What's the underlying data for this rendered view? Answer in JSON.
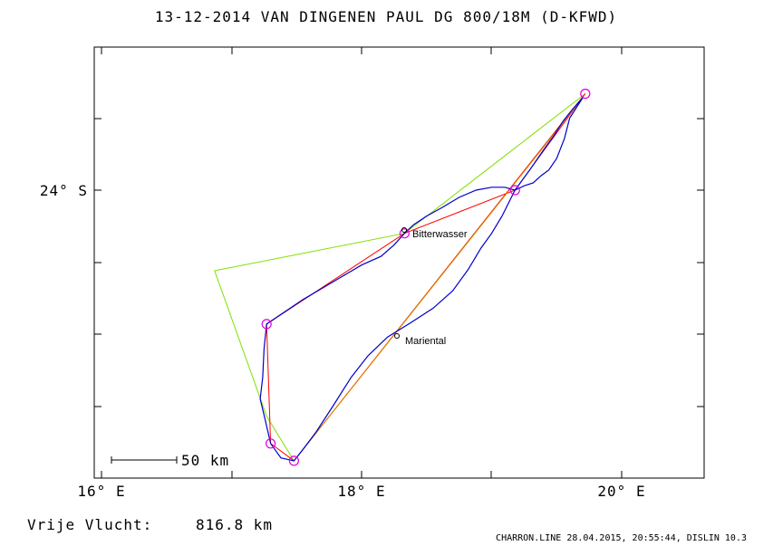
{
  "title": "13-12-2014    VAN DINGENEN PAUL    DG 800/18M (D-KFWD)",
  "colors": {
    "track": "#0000cc",
    "task_red": "#ff0000",
    "task_green": "#80e000",
    "task_orange": "#e08000",
    "turnpoint": "#e000e0",
    "frame": "#000000"
  },
  "axes": {
    "x_ticks": [
      "16° E",
      "18° E",
      "20° E"
    ],
    "y_ticks": [
      "24° S"
    ]
  },
  "places": [
    {
      "name": "Bitterwasser"
    },
    {
      "name": "Mariental"
    }
  ],
  "scale_bar": "50 km",
  "footer": {
    "distance_label": "Vrije Vlucht:",
    "distance_value": "816.8 km",
    "credit": "CHARRON.LINE 28.04.2015, 20:55:44, DISLIN 10.3"
  },
  "map_data": {
    "lon_range": [
      15.95,
      20.65
    ],
    "lat_range": [
      -25.95,
      -23.17
    ],
    "turnpoints": [
      {
        "lon": 19.72,
        "lat": -23.33
      },
      {
        "lon": 19.18,
        "lat": -24.0
      },
      {
        "lon": 18.33,
        "lat": -24.3
      },
      {
        "lon": 17.27,
        "lat": -24.93
      },
      {
        "lon": 17.3,
        "lat": -25.76
      },
      {
        "lon": 17.48,
        "lat": -25.88
      }
    ],
    "route_red": [
      [
        19.72,
        -23.33
      ],
      [
        19.18,
        -24.0
      ],
      [
        18.33,
        -24.3
      ],
      [
        17.27,
        -24.93
      ],
      [
        17.3,
        -25.76
      ],
      [
        17.48,
        -25.88
      ],
      [
        19.72,
        -23.33
      ]
    ],
    "route_green": [
      [
        19.72,
        -23.33
      ],
      [
        18.33,
        -24.3
      ],
      [
        16.87,
        -24.56
      ],
      [
        17.27,
        -25.57
      ],
      [
        17.48,
        -25.88
      ],
      [
        19.72,
        -23.33
      ]
    ],
    "route_orange": [
      [
        17.48,
        -25.88
      ],
      [
        19.7,
        -23.36
      ]
    ],
    "track": [
      [
        19.7,
        -23.36
      ],
      [
        19.6,
        -23.5
      ],
      [
        19.56,
        -23.64
      ],
      [
        19.5,
        -23.78
      ],
      [
        19.44,
        -23.86
      ],
      [
        19.38,
        -23.9
      ],
      [
        19.32,
        -23.95
      ],
      [
        19.25,
        -23.97
      ],
      [
        19.18,
        -24.0
      ],
      [
        19.1,
        -23.98
      ],
      [
        19.0,
        -23.98
      ],
      [
        18.88,
        -24.0
      ],
      [
        18.75,
        -24.05
      ],
      [
        18.62,
        -24.12
      ],
      [
        18.5,
        -24.18
      ],
      [
        18.4,
        -24.24
      ],
      [
        18.33,
        -24.3
      ],
      [
        18.25,
        -24.38
      ],
      [
        18.15,
        -24.46
      ],
      [
        18.0,
        -24.52
      ],
      [
        17.85,
        -24.6
      ],
      [
        17.7,
        -24.68
      ],
      [
        17.55,
        -24.76
      ],
      [
        17.4,
        -24.85
      ],
      [
        17.27,
        -24.93
      ],
      [
        17.25,
        -25.1
      ],
      [
        17.24,
        -25.3
      ],
      [
        17.22,
        -25.45
      ],
      [
        17.26,
        -25.6
      ],
      [
        17.3,
        -25.76
      ],
      [
        17.38,
        -25.86
      ],
      [
        17.48,
        -25.88
      ],
      [
        17.55,
        -25.8
      ],
      [
        17.65,
        -25.68
      ],
      [
        17.78,
        -25.5
      ],
      [
        17.92,
        -25.3
      ],
      [
        18.05,
        -25.15
      ],
      [
        18.2,
        -25.02
      ],
      [
        18.38,
        -24.92
      ],
      [
        18.55,
        -24.82
      ],
      [
        18.7,
        -24.7
      ],
      [
        18.82,
        -24.55
      ],
      [
        18.92,
        -24.4
      ],
      [
        19.0,
        -24.3
      ],
      [
        19.08,
        -24.18
      ],
      [
        19.18,
        -24.0
      ],
      [
        19.3,
        -23.85
      ],
      [
        19.4,
        -23.72
      ],
      [
        19.48,
        -23.62
      ],
      [
        19.55,
        -23.52
      ],
      [
        19.62,
        -23.44
      ],
      [
        19.7,
        -23.36
      ]
    ]
  }
}
